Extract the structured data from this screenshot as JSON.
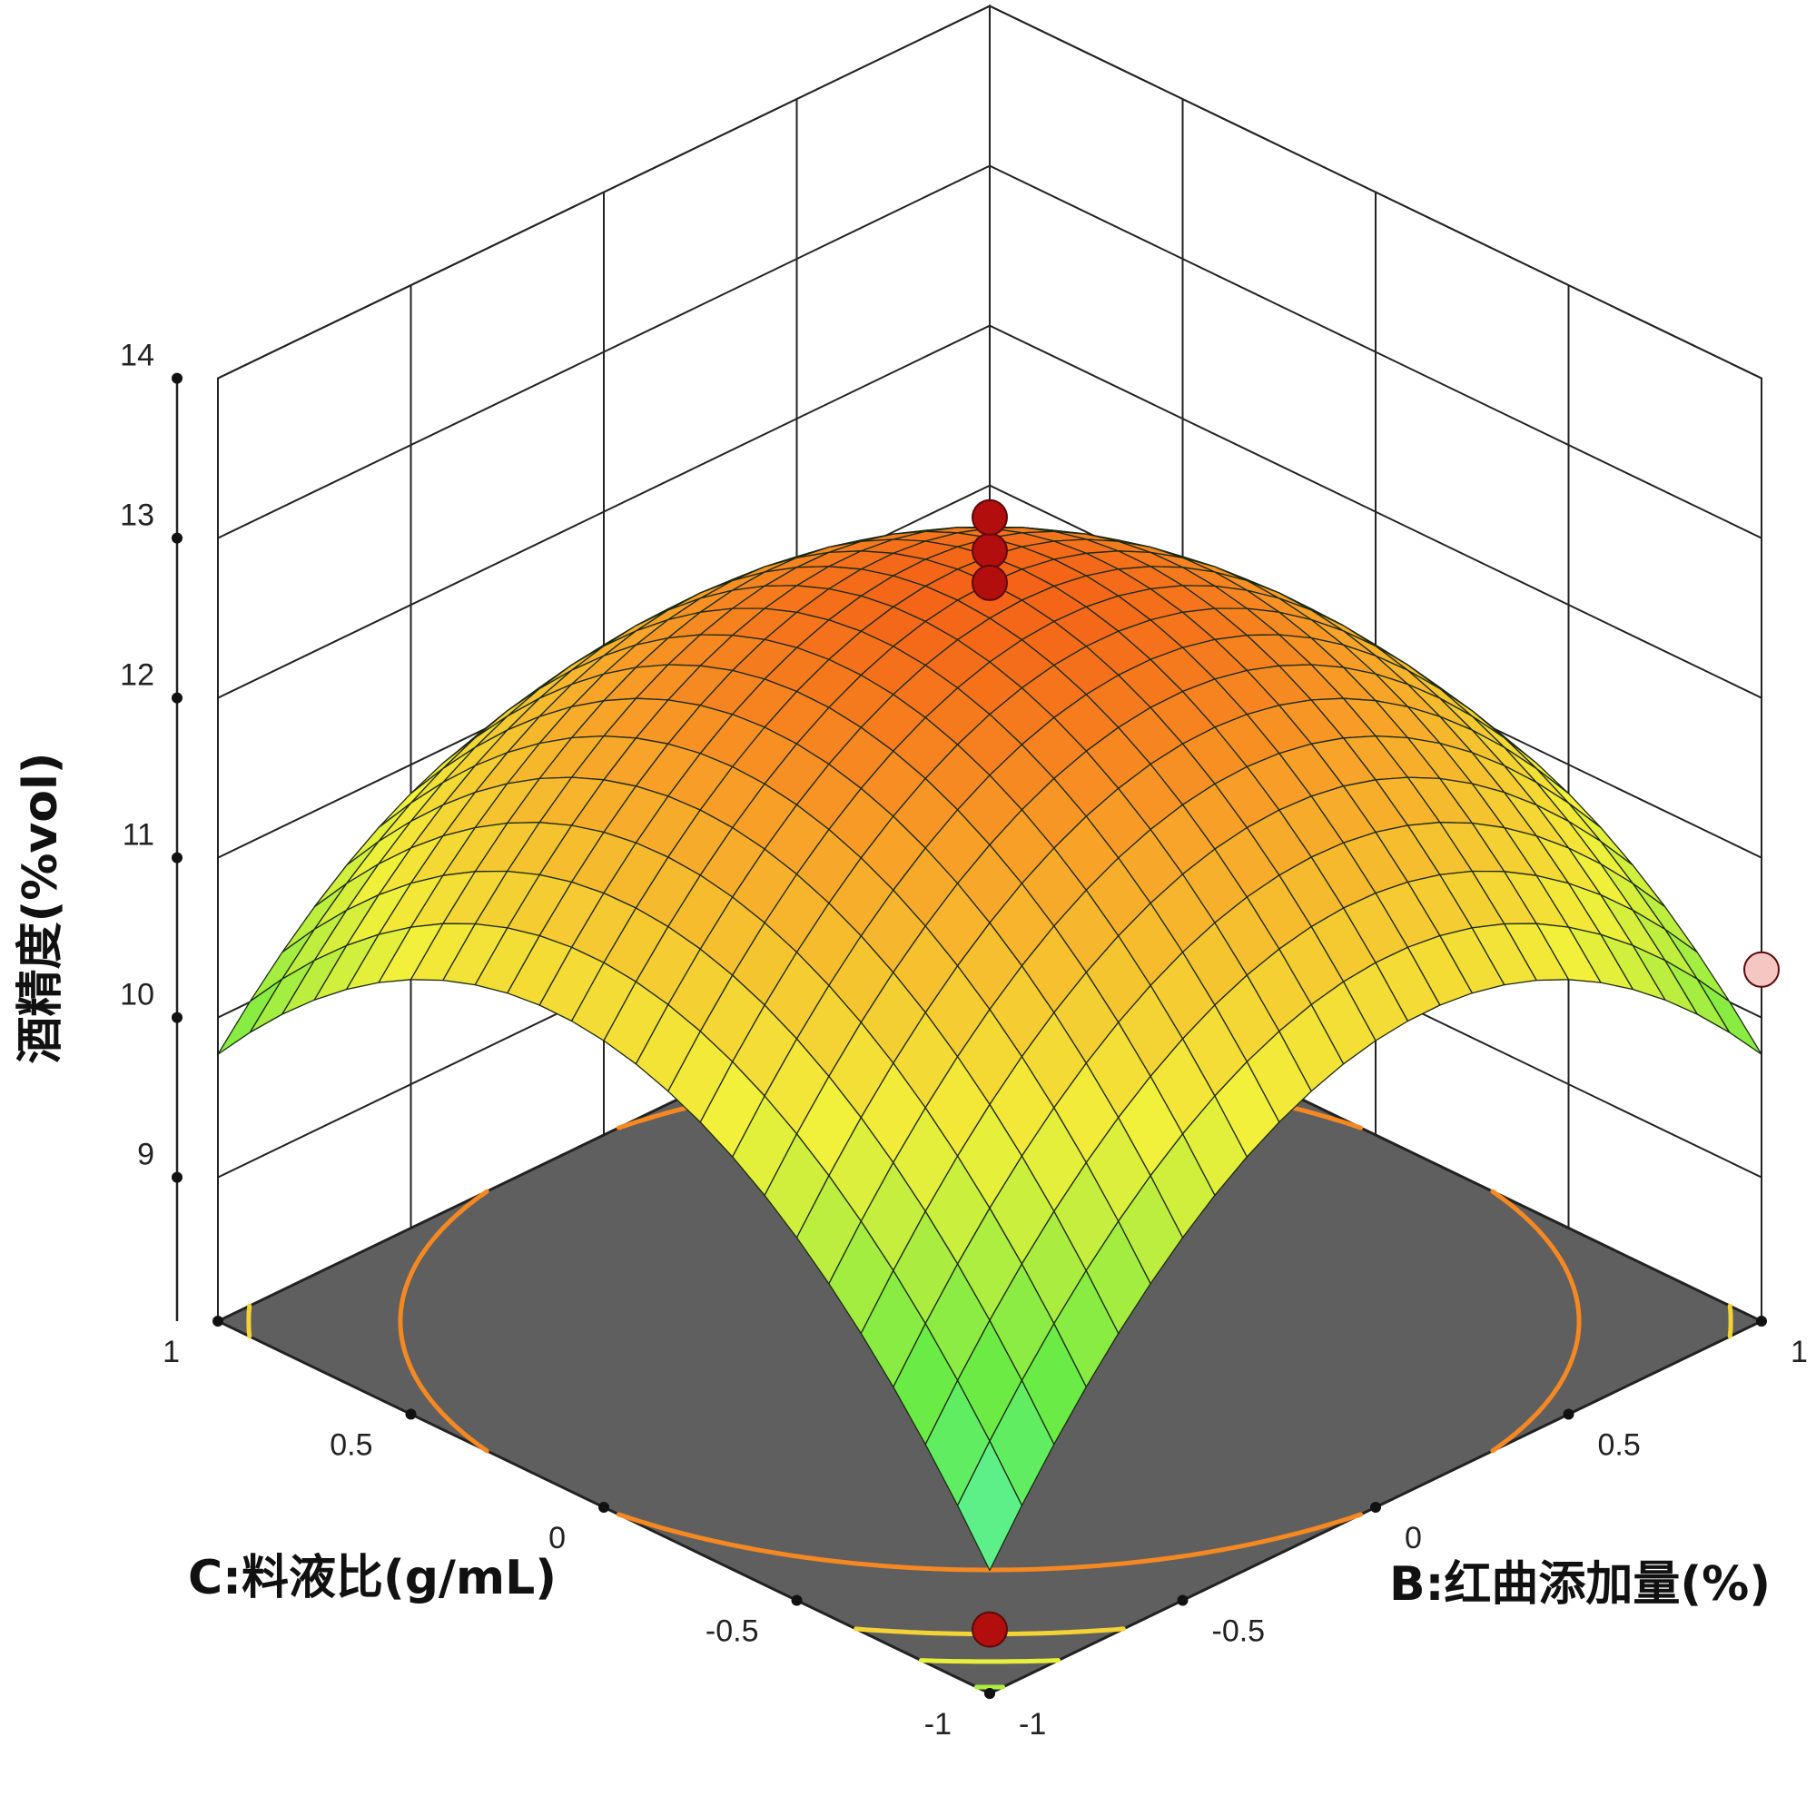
{
  "chart_data": {
    "type": "surface3d",
    "surface_model": {
      "form": "quadratic",
      "intercept": 12.72,
      "b_quadratic": -1.7,
      "c_quadratic": -1.7,
      "bc_interaction": -0.45
    },
    "x_axis": {
      "label": "B:红曲添加量(%)",
      "range": [
        -1,
        1
      ],
      "ticks": [
        "-1",
        "-0.5",
        "0",
        "0.5",
        "1"
      ]
    },
    "y_axis": {
      "label": "C:料液比(g/mL)",
      "range": [
        -1,
        1
      ],
      "ticks": [
        "-1",
        "-0.5",
        "0",
        "0.5",
        "1"
      ]
    },
    "z_axis": {
      "label": "酒精度(%vol)",
      "range": [
        8.5,
        14
      ],
      "ticks": [
        "9",
        "10",
        "11",
        "12",
        "13",
        "14"
      ]
    },
    "design_points": [
      {
        "b": 0,
        "c": 0,
        "value": 12.92,
        "side": "above"
      },
      {
        "b": 0,
        "c": 0,
        "value": 12.72,
        "side": "above"
      },
      {
        "b": 1,
        "c": 1,
        "value": 10.8,
        "side": "above"
      },
      {
        "b": 1,
        "c": -1,
        "value": 10.3,
        "side": "below"
      },
      {
        "b": -1,
        "c": -1,
        "value": 8.5,
        "side": "above"
      }
    ],
    "contour_levels": [
      8.6,
      9.0,
      9.5,
      10.0,
      11.0
    ],
    "colors": {
      "floor": "#5f5f5f",
      "grid": "#222222",
      "design_point_above": "#b20e0e",
      "design_point_below": "#f6c7c2",
      "surface_low": "#55f6d2",
      "surface_mid": "#f2f03a",
      "surface_high": "#f24a10"
    }
  }
}
